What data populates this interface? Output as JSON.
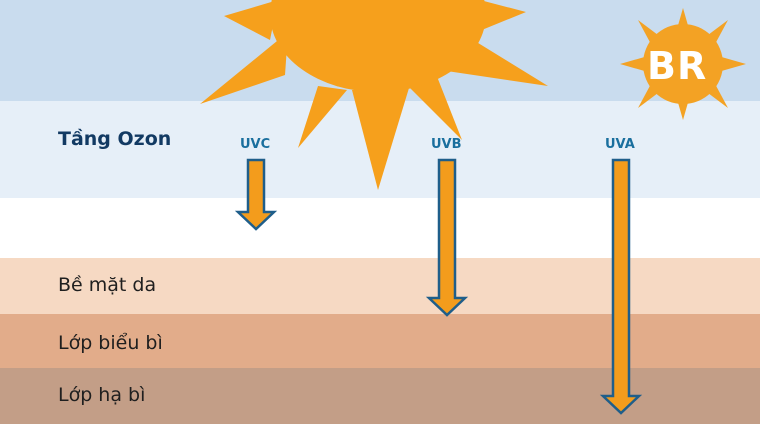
{
  "labels": {
    "ozone": "Tầng Ozon",
    "skin_surface": "Bề mặt da",
    "epidermis": "Lớp biểu bì",
    "dermis": "Lớp hạ bì"
  },
  "rays": [
    {
      "name": "UVC",
      "penetrates_to": "Tầng Ozon"
    },
    {
      "name": "UVB",
      "penetrates_to": "Bề mặt da"
    },
    {
      "name": "UVA",
      "penetrates_to": "Lớp hạ bì"
    }
  ],
  "logo": {
    "text": "BR"
  },
  "icons": {
    "sun": "sun-icon",
    "logo": "sun-badge-icon"
  },
  "colors": {
    "sky": "#c9dcee",
    "ozone": "#e6eff8",
    "air": "#ffffff",
    "skin_surface": "#f6d9c3",
    "epidermis": "#e2ac8a",
    "dermis": "#c39e87",
    "sun": "#f6a01c",
    "arrow_fill": "#f39c1c",
    "arrow_stroke": "#1f5e8a",
    "label_dark": "#123a63",
    "ray_label": "#1a6f9e"
  }
}
